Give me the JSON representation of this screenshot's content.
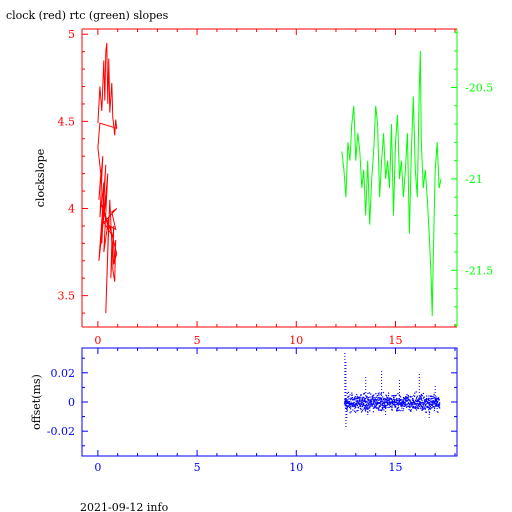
{
  "chart_data": [
    {
      "type": "line",
      "title": "clock (red) rtc (green) slopes",
      "xlabel": "",
      "ylabel": "clockslope",
      "xlim": [
        -0.8,
        18.1
      ],
      "ylim": [
        3.32,
        5.03
      ],
      "y2lim": [
        -21.81,
        -20.18
      ],
      "grid": false,
      "x_ticks": [
        "0",
        "5",
        "10",
        "15"
      ],
      "y_ticks": [
        "3.5",
        "4",
        "4.5",
        "5"
      ],
      "y2_ticks": [
        "-21.5",
        "-21",
        "-20.5"
      ],
      "colors": {
        "axes": "#ff0000",
        "right_axis": "#00ff00",
        "clock": "#ff0000",
        "rtc": "#00ff00"
      },
      "series": [
        {
          "axis": "left",
          "color": "#ff0000",
          "points": [
            [
              0.0,
              4.49
            ],
            [
              0.1,
              4.7
            ],
            [
              0.2,
              4.56
            ],
            [
              0.3,
              4.85
            ],
            [
              0.35,
              4.62
            ],
            [
              0.4,
              4.9
            ],
            [
              0.45,
              4.95
            ],
            [
              0.5,
              4.6
            ],
            [
              0.55,
              4.86
            ],
            [
              0.6,
              4.55
            ],
            [
              0.7,
              4.72
            ],
            [
              0.75,
              4.52
            ],
            [
              0.8,
              4.48
            ],
            [
              0.85,
              4.42
            ],
            [
              0.9,
              4.51
            ],
            [
              0.95,
              4.46
            ],
            [
              0.1,
              4.49
            ],
            [
              0.0,
              4.35
            ],
            [
              0.15,
              4.2
            ],
            [
              0.05,
              4.05
            ],
            [
              0.25,
              4.3
            ],
            [
              0.1,
              3.95
            ],
            [
              0.3,
              4.15
            ],
            [
              0.2,
              3.8
            ],
            [
              0.4,
              4.25
            ],
            [
              0.05,
              3.7
            ],
            [
              0.35,
              4.0
            ],
            [
              0.15,
              3.85
            ],
            [
              0.45,
              4.1
            ],
            [
              0.25,
              3.9
            ],
            [
              0.5,
              4.2
            ],
            [
              0.3,
              3.75
            ],
            [
              0.55,
              3.95
            ],
            [
              0.4,
              3.4
            ],
            [
              0.5,
              3.75
            ],
            [
              0.6,
              4.05
            ],
            [
              0.7,
              3.8
            ],
            [
              0.65,
              3.6
            ],
            [
              0.8,
              3.9
            ],
            [
              0.75,
              3.65
            ],
            [
              0.85,
              3.58
            ],
            [
              0.9,
              3.82
            ],
            [
              0.8,
              3.68
            ],
            [
              0.95,
              3.74
            ],
            [
              0.6,
              3.9
            ],
            [
              0.9,
              3.88
            ],
            [
              0.7,
              3.98
            ],
            [
              0.95,
              4.0
            ],
            [
              0.3,
              3.92
            ],
            [
              0.75,
              3.84
            ],
            [
              0.2,
              4.02
            ],
            [
              0.55,
              3.88
            ]
          ]
        },
        {
          "axis": "right",
          "color": "#00ff00",
          "points": [
            [
              12.3,
              -20.85
            ],
            [
              12.4,
              -20.95
            ],
            [
              12.5,
              -21.1
            ],
            [
              12.6,
              -20.8
            ],
            [
              12.7,
              -20.9
            ],
            [
              12.8,
              -20.7
            ],
            [
              12.9,
              -20.6
            ],
            [
              13.0,
              -20.9
            ],
            [
              13.1,
              -20.75
            ],
            [
              13.2,
              -20.85
            ],
            [
              13.3,
              -21.05
            ],
            [
              13.4,
              -20.95
            ],
            [
              13.5,
              -21.2
            ],
            [
              13.6,
              -20.9
            ],
            [
              13.7,
              -21.25
            ],
            [
              13.8,
              -21.0
            ],
            [
              13.9,
              -20.85
            ],
            [
              14.0,
              -20.6
            ],
            [
              14.1,
              -20.7
            ],
            [
              14.2,
              -21.1
            ],
            [
              14.3,
              -20.9
            ],
            [
              14.4,
              -20.75
            ],
            [
              14.5,
              -21.0
            ],
            [
              14.6,
              -20.9
            ],
            [
              14.7,
              -21.05
            ],
            [
              14.8,
              -20.7
            ],
            [
              14.9,
              -21.2
            ],
            [
              15.0,
              -20.8
            ],
            [
              15.1,
              -20.65
            ],
            [
              15.2,
              -21.0
            ],
            [
              15.3,
              -20.9
            ],
            [
              15.4,
              -21.1
            ],
            [
              15.5,
              -20.95
            ],
            [
              15.6,
              -20.75
            ],
            [
              15.7,
              -21.3
            ],
            [
              15.8,
              -20.85
            ],
            [
              15.9,
              -20.55
            ],
            [
              16.0,
              -20.95
            ],
            [
              16.1,
              -21.1
            ],
            [
              16.2,
              -20.5
            ],
            [
              16.25,
              -20.3
            ],
            [
              16.3,
              -20.8
            ],
            [
              16.4,
              -21.05
            ],
            [
              16.5,
              -20.95
            ],
            [
              16.6,
              -21.1
            ],
            [
              16.7,
              -21.3
            ],
            [
              16.8,
              -21.55
            ],
            [
              16.85,
              -21.75
            ],
            [
              16.9,
              -21.45
            ],
            [
              17.0,
              -20.95
            ],
            [
              17.1,
              -20.8
            ],
            [
              17.2,
              -21.05
            ],
            [
              17.3,
              -21.0
            ]
          ]
        }
      ]
    },
    {
      "type": "scatter",
      "title": "",
      "xlabel": "",
      "ylabel": "offset(ms)",
      "xlim": [
        -0.8,
        18.1
      ],
      "ylim": [
        -0.037,
        0.037
      ],
      "grid": false,
      "x_ticks": [
        "0",
        "5",
        "10",
        "15"
      ],
      "y_ticks": [
        "-0.02",
        "0",
        "0.02"
      ],
      "colors": {
        "axes": "#0000ff",
        "points": "#0000ff"
      },
      "series": [
        {
          "color": "#0000ff",
          "x_range": [
            12.4,
            17.2
          ],
          "y_band": [
            -0.008,
            0.008
          ],
          "spikes": [
            [
              12.45,
              0.034
            ],
            [
              12.5,
              -0.018
            ],
            [
              12.5,
              0.028
            ],
            [
              12.55,
              -0.012
            ],
            [
              13.5,
              0.018
            ],
            [
              13.6,
              -0.01
            ],
            [
              14.3,
              0.022
            ],
            [
              14.5,
              -0.009
            ],
            [
              15.2,
              0.015
            ],
            [
              16.2,
              0.02
            ],
            [
              16.7,
              -0.011
            ],
            [
              17.0,
              0.012
            ],
            [
              17.1,
              -0.008
            ]
          ]
        }
      ]
    }
  ],
  "footer": {
    "date_info": "2021-09-12 info"
  }
}
